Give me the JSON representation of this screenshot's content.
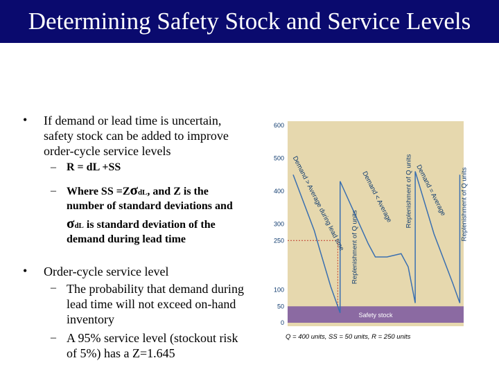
{
  "slide": {
    "title": "Determining Safety Stock and Service Levels"
  },
  "bullets": [
    {
      "marker": "•",
      "lines": [
        "If demand or lead time is uncertain,",
        "safety stock can be added to improve",
        "order-cycle service levels"
      ]
    },
    {
      "marker": "•",
      "lines": [
        "Order-cycle service level"
      ]
    }
  ],
  "sub_bullets": {
    "dash": "–",
    "reorder": "R = dL +SS",
    "where_a": "Where  SS =Z",
    "sigma": "σ",
    "dl": "dL",
    "where_b": ", and Z is the",
    "where_line2": "number of standard deviations and",
    "sigma2": "σ",
    "dl2": "dL",
    "where_line3": " is standard deviation of the",
    "where_line4": "demand during lead time",
    "prob_lines": [
      "The probability that demand during",
      "lead time will not exceed on-hand",
      "inventory"
    ],
    "risk_lines": [
      "A 95% service level (stockout risk",
      "of 5%) has a Z=1.645"
    ]
  },
  "chart_data": {
    "type": "line",
    "y_ticks": [
      "600",
      "500",
      "400",
      "300",
      "250",
      "100",
      "50",
      "0"
    ],
    "y_tick_values": [
      600,
      500,
      400,
      300,
      250,
      100,
      50,
      0
    ],
    "ylim": [
      0,
      600
    ],
    "series": [
      {
        "values": [
          [
            0,
            450
          ],
          [
            0.45,
            280
          ],
          [
            0.55,
            230
          ],
          [
            0.8,
            110
          ],
          [
            1.0,
            30
          ],
          [
            1.0,
            430
          ],
          [
            1.6,
            240
          ],
          [
            1.75,
            200
          ],
          [
            2.0,
            200
          ],
          [
            2.3,
            210
          ],
          [
            2.45,
            170
          ],
          [
            2.6,
            60
          ],
          [
            2.6,
            460
          ],
          [
            3.0,
            270
          ],
          [
            3.4,
            120
          ],
          [
            3.55,
            60
          ],
          [
            3.55,
            450
          ]
        ]
      }
    ],
    "reorder_point": 250,
    "safety_stock_level": 50,
    "safety_stock_label": "Safety stock",
    "annotations": [
      "Demand > Average during lead time",
      "Replenishment of Q units",
      "Demand < Average",
      "Replenishment of Q units",
      "Demand = Average",
      "Replenishment of Q units"
    ],
    "caption": "Q = 400 units, SS = 50 units, R = 250 units",
    "colors": {
      "background": "#e6d8ae",
      "line": "#3a6fb0",
      "safety_band": "#8b6aa2",
      "reorder_line": "#c0392b",
      "text": "#0e3a6e"
    }
  }
}
